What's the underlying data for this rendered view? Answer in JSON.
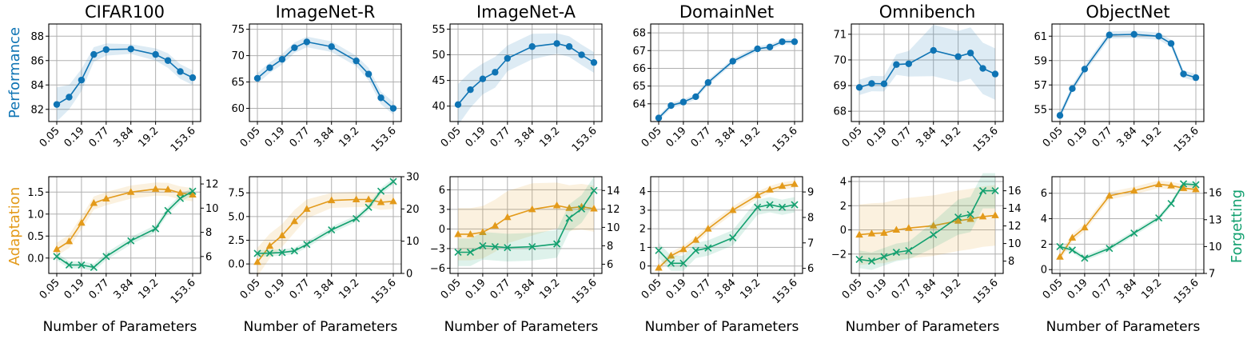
{
  "colors": {
    "performance": "#0f74b4",
    "adaptation": "#e39a1a",
    "forgetting": "#12a06f"
  },
  "labels": {
    "performance_ylabel": "Performance",
    "adaptation_ylabel": "Adaptation",
    "forgetting_ylabel": "Forgetting",
    "xlabel": "Number of Parameters"
  },
  "chart_data": [
    {
      "type": "line",
      "title": "CIFAR100",
      "x": [
        "0.05",
        "0.1",
        "0.19",
        "0.38",
        "0.77",
        "1.92",
        "3.84",
        "9.6",
        "19.2",
        "38.4",
        "76.8",
        "153.6"
      ],
      "xtick_labels": [
        "0.05",
        "0.19",
        "0.77",
        "3.84",
        "19.2",
        "153.6"
      ],
      "performance": {
        "name": "Performance",
        "values": [
          82.4,
          83.0,
          84.4,
          86.5,
          86.9,
          86.95,
          86.5,
          86.0,
          85.1,
          84.6
        ],
        "x_index": [
          0,
          1,
          2,
          3,
          4,
          6,
          8,
          9,
          10,
          11
        ],
        "band": [
          1.4,
          1.0,
          0.9,
          0.6,
          0.5,
          0.4,
          0.5,
          0.6,
          0.6,
          0.6
        ],
        "ylim": [
          81.0,
          89.0
        ],
        "yticks": [
          82,
          84,
          86,
          88
        ]
      },
      "adaptation": {
        "name": "Adaptation",
        "values": [
          0.2,
          0.38,
          0.8,
          1.25,
          1.35,
          1.5,
          1.57,
          1.56,
          1.48,
          1.44
        ],
        "x_index": [
          0,
          1,
          2,
          3,
          4,
          6,
          8,
          9,
          10,
          11
        ],
        "band": [
          0.15,
          0.15,
          0.15,
          0.15,
          0.15,
          0.15,
          0.15,
          0.15,
          0.15,
          0.15
        ],
        "ylim": [
          -0.35,
          1.85
        ],
        "yticks": [
          0.0,
          0.5,
          1.0,
          1.5
        ]
      },
      "forgetting": {
        "name": "Forgetting",
        "values": [
          6.0,
          5.3,
          5.3,
          5.1,
          6.0,
          7.3,
          8.3,
          9.8,
          10.8,
          11.4
        ],
        "x_index": [
          0,
          1,
          2,
          3,
          4,
          6,
          8,
          9,
          10,
          11
        ],
        "band": [
          0.3,
          0.3,
          0.3,
          0.3,
          0.3,
          0.3,
          0.3,
          0.3,
          0.3,
          0.3
        ],
        "ylim": [
          4.6,
          12.6
        ],
        "yticks": [
          6,
          8,
          10,
          12
        ]
      }
    },
    {
      "type": "line",
      "title": "ImageNet-R",
      "x": [
        "0.05",
        "0.1",
        "0.19",
        "0.38",
        "0.77",
        "1.92",
        "3.84",
        "9.6",
        "19.2",
        "38.4",
        "76.8",
        "153.6"
      ],
      "xtick_labels": [
        "0.05",
        "0.19",
        "0.77",
        "3.84",
        "19.2",
        "153.6"
      ],
      "performance": {
        "name": "Performance",
        "values": [
          65.7,
          67.7,
          69.3,
          71.5,
          72.6,
          71.7,
          69.0,
          66.5,
          62.0,
          60.0
        ],
        "x_index": [
          0,
          1,
          2,
          3,
          4,
          6,
          8,
          9,
          10,
          11
        ],
        "band": [
          1.0,
          1.0,
          1.0,
          1.0,
          1.0,
          1.0,
          1.0,
          1.2,
          1.2,
          1.2
        ],
        "ylim": [
          57.5,
          76.0
        ],
        "yticks": [
          60,
          65,
          70,
          75
        ]
      },
      "adaptation": {
        "name": "Adaptation",
        "values": [
          0.2,
          1.9,
          3.0,
          4.5,
          5.8,
          6.7,
          6.8,
          6.8,
          6.5,
          6.6
        ],
        "x_index": [
          0,
          1,
          2,
          3,
          4,
          6,
          8,
          9,
          10,
          11
        ],
        "band": [
          1.5,
          1.3,
          1.2,
          1.2,
          1.0,
          0.8,
          0.8,
          0.8,
          0.8,
          0.8
        ],
        "ylim": [
          -1.0,
          9.2
        ],
        "yticks": [
          0.0,
          2.5,
          5.0,
          7.5
        ]
      },
      "forgetting": {
        "name": "Forgetting",
        "values": [
          6.2,
          6.3,
          6.5,
          7.0,
          9.0,
          13.5,
          17.0,
          20.5,
          25.5,
          28.5
        ],
        "x_index": [
          0,
          1,
          2,
          3,
          4,
          6,
          8,
          9,
          10,
          11
        ],
        "band": [
          1.0,
          1.0,
          1.0,
          1.0,
          1.0,
          1.0,
          1.0,
          1.0,
          1.0,
          1.0
        ],
        "ylim": [
          0,
          30
        ],
        "yticks": [
          0,
          10,
          20,
          30
        ]
      }
    },
    {
      "type": "line",
      "title": "ImageNet-A",
      "x": [
        "0.05",
        "0.1",
        "0.19",
        "0.38",
        "0.77",
        "1.92",
        "3.84",
        "9.6",
        "19.2",
        "38.4",
        "76.8",
        "153.6"
      ],
      "xtick_labels": [
        "0.05",
        "0.19",
        "0.77",
        "3.84",
        "19.2",
        "153.6"
      ],
      "performance": {
        "name": "Performance",
        "values": [
          40.3,
          43.2,
          45.3,
          46.6,
          49.3,
          51.6,
          52.2,
          51.6,
          50.0,
          48.5
        ],
        "x_index": [
          0,
          1,
          2,
          3,
          4,
          6,
          8,
          9,
          10,
          11
        ],
        "band": [
          4.0,
          3.5,
          3.0,
          3.0,
          2.5,
          2.5,
          2.0,
          2.0,
          2.0,
          2.0
        ],
        "ylim": [
          37.0,
          56.0
        ],
        "yticks": [
          40,
          45,
          50,
          55
        ]
      },
      "adaptation": {
        "name": "Adaptation",
        "values": [
          -0.8,
          -0.8,
          -0.5,
          0.5,
          1.8,
          3.0,
          3.6,
          3.2,
          3.4,
          3.1
        ],
        "x_index": [
          0,
          1,
          2,
          3,
          4,
          6,
          8,
          9,
          10,
          11
        ],
        "band": [
          4.0,
          4.0,
          4.0,
          4.0,
          4.0,
          4.0,
          3.5,
          3.5,
          3.5,
          3.5
        ],
        "ylim": [
          -6.8,
          8.0
        ],
        "yticks": [
          -6,
          -3,
          0,
          3,
          6
        ]
      },
      "forgetting": {
        "name": "Forgetting",
        "values": [
          7.3,
          7.3,
          8.0,
          7.9,
          7.8,
          7.9,
          8.2,
          11.0,
          12.0,
          14.0
        ],
        "x_index": [
          0,
          1,
          2,
          3,
          4,
          6,
          8,
          9,
          10,
          11
        ],
        "band": [
          1.5,
          1.5,
          1.5,
          1.5,
          1.5,
          1.5,
          1.5,
          1.5,
          1.5,
          1.5
        ],
        "ylim": [
          5.0,
          15.5
        ],
        "yticks": [
          6,
          8,
          10,
          12,
          14
        ]
      }
    },
    {
      "type": "line",
      "title": "DomainNet",
      "x": [
        "0.05",
        "0.1",
        "0.19",
        "0.38",
        "0.77",
        "1.92",
        "3.84",
        "9.6",
        "19.2",
        "38.4",
        "76.8",
        "153.6"
      ],
      "xtick_labels": [
        "0.05",
        "0.19",
        "0.77",
        "3.84",
        "19.2",
        "153.6"
      ],
      "performance": {
        "name": "Performance",
        "values": [
          63.2,
          63.9,
          64.1,
          64.4,
          65.2,
          66.4,
          67.1,
          67.2,
          67.5,
          67.5
        ],
        "x_index": [
          0,
          1,
          2,
          3,
          4,
          6,
          8,
          9,
          10,
          11
        ],
        "band": [
          0.15,
          0.15,
          0.15,
          0.15,
          0.15,
          0.15,
          0.15,
          0.15,
          0.15,
          0.15
        ],
        "ylim": [
          63.0,
          68.5
        ],
        "yticks": [
          64,
          65,
          66,
          67,
          68
        ]
      },
      "adaptation": {
        "name": "Adaptation",
        "values": [
          -0.1,
          0.55,
          0.9,
          1.4,
          2.0,
          3.0,
          3.8,
          4.1,
          4.3,
          4.4
        ],
        "x_index": [
          0,
          1,
          2,
          3,
          4,
          6,
          8,
          9,
          10,
          11
        ],
        "band": [
          0.2,
          0.2,
          0.2,
          0.2,
          0.2,
          0.2,
          0.2,
          0.2,
          0.2,
          0.2
        ],
        "ylim": [
          -0.4,
          4.8
        ],
        "yticks": [
          0,
          1,
          2,
          3,
          4
        ]
      },
      "forgetting": {
        "name": "Forgetting",
        "values": [
          6.7,
          6.2,
          6.2,
          6.7,
          6.8,
          7.2,
          8.4,
          8.5,
          8.4,
          8.5
        ],
        "x_index": [
          0,
          1,
          2,
          3,
          4,
          6,
          8,
          9,
          10,
          11
        ],
        "band": [
          0.3,
          0.3,
          0.3,
          0.3,
          0.3,
          0.3,
          0.3,
          0.3,
          0.3,
          0.3
        ],
        "ylim": [
          5.8,
          9.6
        ],
        "yticks": [
          6,
          7,
          8,
          9
        ]
      }
    },
    {
      "type": "line",
      "title": "Omnibench",
      "x": [
        "0.05",
        "0.1",
        "0.19",
        "0.38",
        "0.77",
        "1.92",
        "3.84",
        "9.6",
        "19.2",
        "38.4",
        "76.8",
        "153.6"
      ],
      "xtick_labels": [
        "0.05",
        "0.19",
        "0.77",
        "3.84",
        "19.2",
        "153.6"
      ],
      "performance": {
        "name": "Performance",
        "values": [
          68.93,
          69.08,
          69.07,
          69.82,
          69.85,
          70.37,
          70.13,
          70.27,
          69.67,
          69.45
        ],
        "x_index": [
          0,
          1,
          2,
          3,
          4,
          6,
          8,
          9,
          10,
          11
        ],
        "band": [
          0.3,
          0.3,
          0.3,
          0.4,
          0.5,
          1.0,
          1.0,
          1.0,
          1.0,
          1.0
        ],
        "ylim": [
          67.6,
          71.4
        ],
        "yticks": [
          68,
          69,
          70,
          71
        ]
      },
      "adaptation": {
        "name": "Adaptation",
        "values": [
          -0.4,
          -0.3,
          -0.25,
          0.0,
          0.15,
          0.35,
          0.75,
          0.9,
          1.1,
          1.2
        ],
        "x_index": [
          0,
          1,
          2,
          3,
          4,
          6,
          8,
          9,
          10,
          11
        ],
        "band": [
          2.5,
          2.5,
          2.5,
          2.5,
          2.5,
          2.5,
          2.5,
          2.5,
          2.5,
          2.5
        ],
        "ylim": [
          -3.6,
          4.4
        ],
        "yticks": [
          -2,
          0,
          2,
          4
        ]
      },
      "forgetting": {
        "name": "Forgetting",
        "values": [
          8.2,
          8.0,
          8.5,
          9.0,
          9.2,
          11.0,
          13.0,
          13.3,
          16.0,
          16.0
        ],
        "x_index": [
          0,
          1,
          2,
          3,
          4,
          6,
          8,
          9,
          10,
          11
        ],
        "band": [
          1.0,
          1.0,
          1.0,
          1.0,
          1.0,
          1.5,
          2.0,
          2.0,
          2.0,
          2.0
        ],
        "ylim": [
          6.6,
          17.6
        ],
        "yticks": [
          8,
          10,
          12,
          14,
          16
        ]
      }
    },
    {
      "type": "line",
      "title": "ObjectNet",
      "x": [
        "0.05",
        "0.1",
        "0.19",
        "0.38",
        "0.77",
        "1.92",
        "3.84",
        "9.6",
        "19.2",
        "38.4",
        "76.8",
        "153.6"
      ],
      "xtick_labels": [
        "0.05",
        "0.19",
        "0.77",
        "3.84",
        "19.2",
        "153.6"
      ],
      "performance": {
        "name": "Performance",
        "values": [
          54.5,
          56.7,
          58.3,
          61.1,
          61.15,
          61.0,
          60.4,
          57.9,
          57.6
        ],
        "x_index": [
          0,
          1,
          2,
          4,
          6,
          8,
          9,
          10,
          11
        ],
        "band": [
          0.3,
          0.3,
          0.3,
          0.3,
          0.3,
          0.3,
          0.3,
          0.3,
          0.3
        ],
        "ylim": [
          54.0,
          62.0
        ],
        "yticks": [
          55,
          57,
          59,
          61
        ]
      },
      "adaptation": {
        "name": "Adaptation",
        "values": [
          1.0,
          2.5,
          3.3,
          5.8,
          6.2,
          6.7,
          6.6,
          6.4,
          6.3
        ],
        "x_index": [
          0,
          1,
          2,
          4,
          6,
          8,
          9,
          10,
          11
        ],
        "band": [
          0.3,
          0.3,
          0.3,
          0.3,
          0.3,
          0.3,
          0.3,
          0.3,
          0.3
        ],
        "ylim": [
          -0.3,
          7.3
        ],
        "yticks": [
          0,
          2,
          4,
          6
        ]
      },
      "forgetting": {
        "name": "Forgetting",
        "values": [
          10.0,
          9.6,
          8.7,
          9.8,
          11.5,
          13.2,
          14.8,
          17.0,
          16.9
        ],
        "x_index": [
          0,
          1,
          2,
          4,
          6,
          8,
          9,
          10,
          11
        ],
        "band": [
          0.3,
          0.3,
          0.3,
          0.3,
          0.3,
          0.3,
          0.3,
          0.3,
          0.3
        ],
        "ylim": [
          7.0,
          17.8
        ],
        "yticks": [
          7,
          10,
          13,
          16
        ]
      }
    }
  ]
}
